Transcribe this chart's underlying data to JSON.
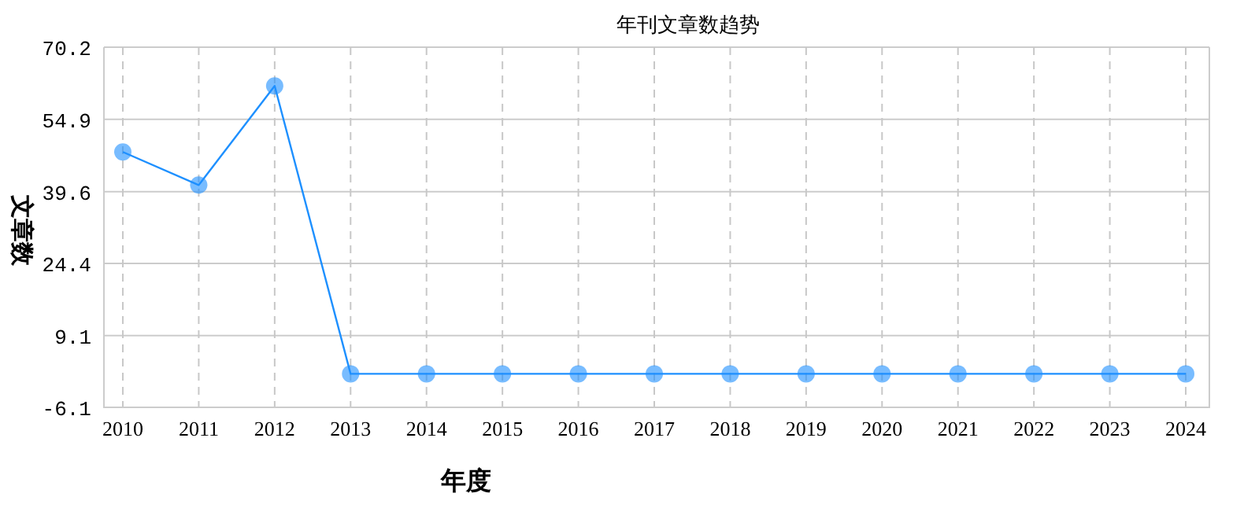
{
  "chart_data": {
    "type": "line",
    "title": "年刊文章数趋势",
    "xlabel": "年度",
    "ylabel": "文章数",
    "categories": [
      "2010",
      "2011",
      "2012",
      "2013",
      "2014",
      "2015",
      "2016",
      "2017",
      "2018",
      "2019",
      "2020",
      "2021",
      "2022",
      "2023",
      "2024"
    ],
    "series": [
      {
        "color": "#1e90ff",
        "values": [
          48,
          41,
          62,
          1,
          1,
          1,
          1,
          1,
          1,
          1,
          1,
          1,
          1,
          1,
          1
        ]
      }
    ],
    "ylim": [
      -6.1,
      70.2
    ],
    "yticks": [
      -6.1,
      9.1,
      24.4,
      39.6,
      54.9,
      70.2
    ],
    "grid": true,
    "marker": "circle",
    "line_style": "solid"
  }
}
